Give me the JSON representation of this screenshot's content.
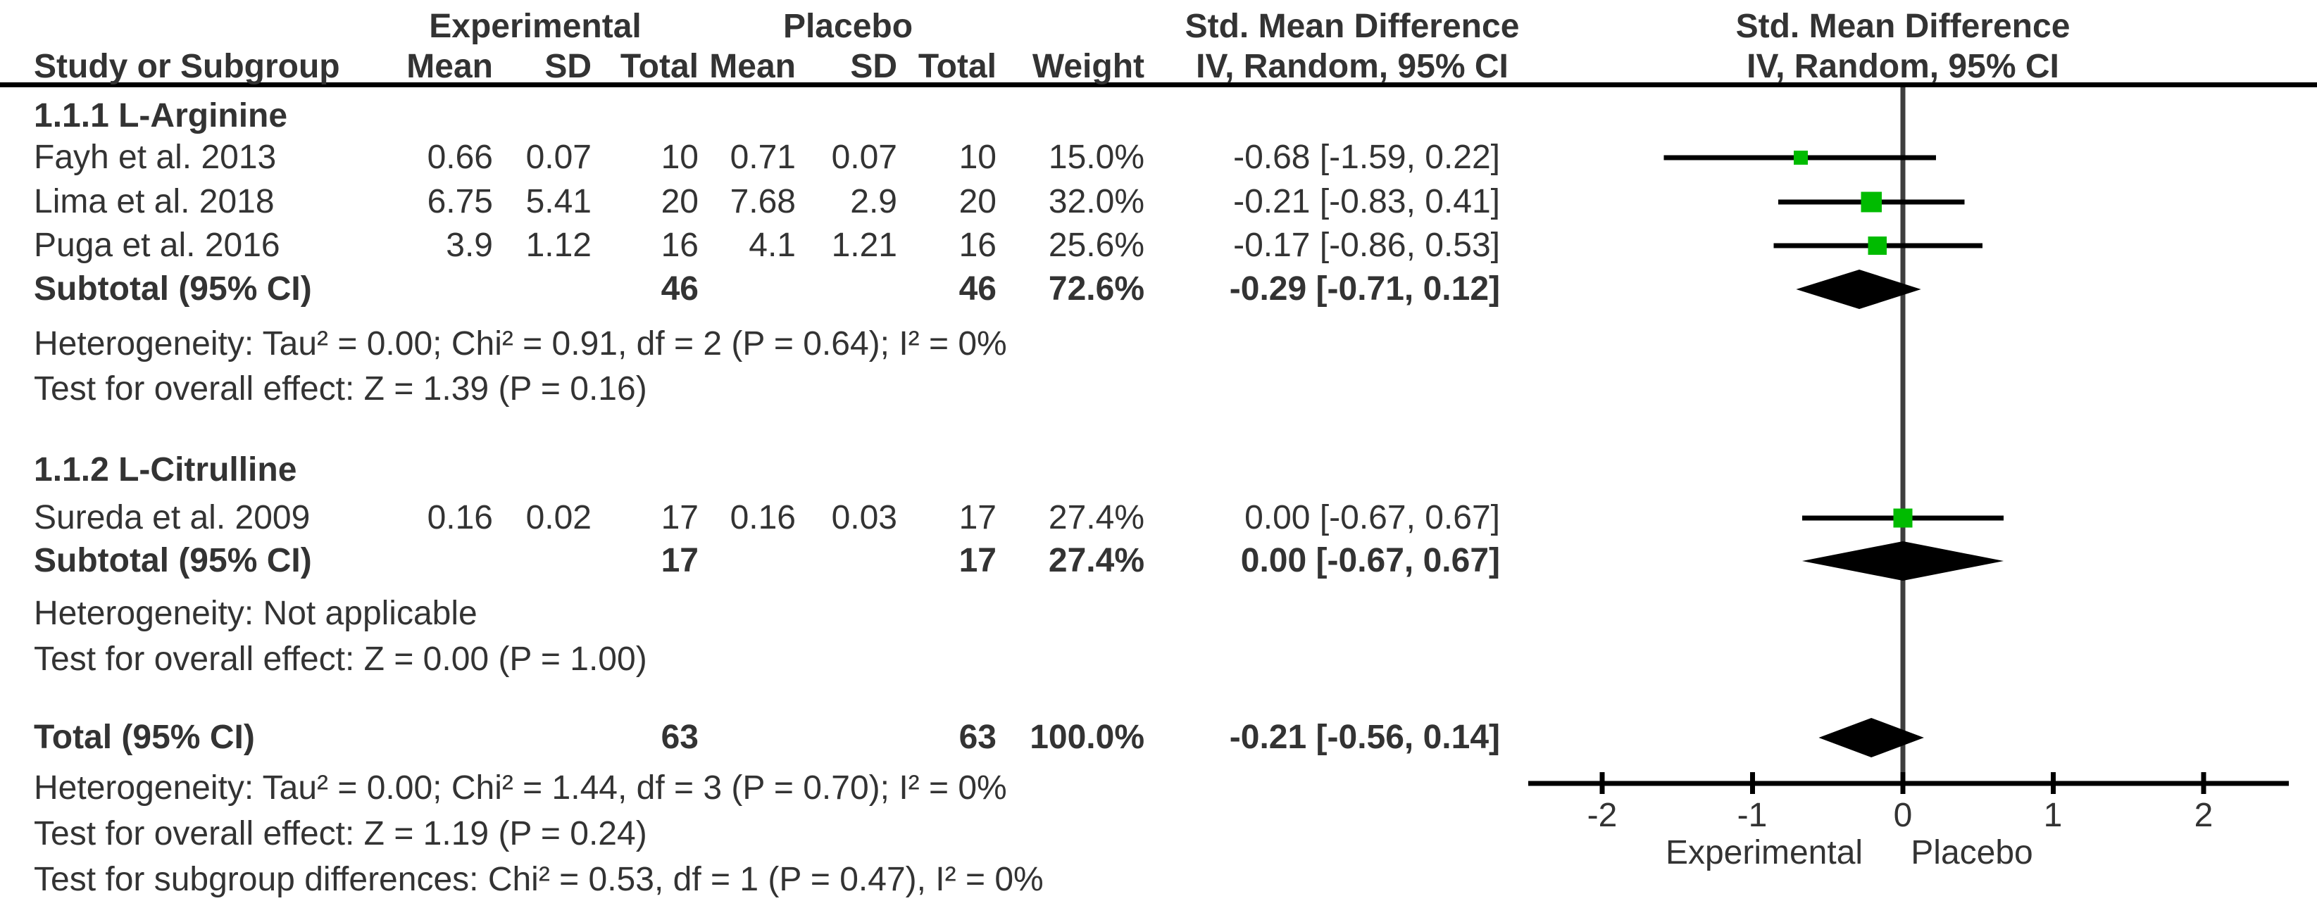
{
  "header": {
    "group1_label": "Experimental",
    "group2_label": "Placebo",
    "effect_label": "Std. Mean Difference",
    "method_label": "IV, Random, 95% CI",
    "study_col": "Study or Subgroup",
    "mean_col": "Mean",
    "sd_col": "SD",
    "total_col": "Total",
    "weight_col": "Weight"
  },
  "axis": {
    "tick_labels": [
      "-2",
      "-1",
      "0",
      "1",
      "2"
    ],
    "tick_values": [
      -2,
      -1,
      0,
      1,
      2
    ],
    "left_label": "Experimental",
    "right_label": "Placebo"
  },
  "colors": {
    "marker_green": "#00BB00",
    "diamond": "#000000",
    "text": "#333333",
    "line": "#000000",
    "zero_line": "#3E3E3E"
  },
  "chart_data": {
    "type": "forest",
    "title": "Std. Mean Difference",
    "method": "IV, Random, 95% CI",
    "xlabel_left": "Experimental",
    "xlabel_right": "Placebo",
    "xlim": [
      -2.5,
      2.6
    ],
    "ticks": [
      -2,
      -1,
      0,
      1,
      2
    ],
    "rows": [
      {
        "kind": "heading",
        "study": "1.1.1 L-Arginine"
      },
      {
        "kind": "study",
        "study": "Fayh et al. 2013",
        "mean_e": "0.66",
        "sd_e": "0.07",
        "total_e": "10",
        "mean_p": "0.71",
        "sd_p": "0.07",
        "total_p": "10",
        "weight": "15.0%",
        "weight_value": 15.0,
        "ci_text": "-0.68 [-1.59, 0.22]",
        "smd": -0.68,
        "ci_lo": -1.59,
        "ci_hi": 0.22
      },
      {
        "kind": "study",
        "study": "Lima et al. 2018",
        "mean_e": "6.75",
        "sd_e": "5.41",
        "total_e": "20",
        "mean_p": "7.68",
        "sd_p": "2.9",
        "total_p": "20",
        "weight": "32.0%",
        "weight_value": 32.0,
        "ci_text": "-0.21 [-0.83, 0.41]",
        "smd": -0.21,
        "ci_lo": -0.83,
        "ci_hi": 0.41
      },
      {
        "kind": "study",
        "study": "Puga et al. 2016",
        "mean_e": "3.9",
        "sd_e": "1.12",
        "total_e": "16",
        "mean_p": "4.1",
        "sd_p": "1.21",
        "total_p": "16",
        "weight": "25.6%",
        "weight_value": 25.6,
        "ci_text": "-0.17 [-0.86, 0.53]",
        "smd": -0.17,
        "ci_lo": -0.86,
        "ci_hi": 0.53
      },
      {
        "kind": "subtotal",
        "study": "Subtotal (95% CI)",
        "total_e": "46",
        "total_p": "46",
        "weight": "72.6%",
        "ci_text": "-0.29 [-0.71, 0.12]",
        "smd": -0.29,
        "ci_lo": -0.71,
        "ci_hi": 0.12
      },
      {
        "kind": "text",
        "study": "Heterogeneity: Tau² = 0.00; Chi² = 0.91, df = 2 (P = 0.64); I² = 0%"
      },
      {
        "kind": "text",
        "study": "Test for overall effect: Z = 1.39 (P = 0.16)"
      },
      {
        "kind": "heading",
        "study": "1.1.2 L-Citrulline"
      },
      {
        "kind": "study",
        "study": "Sureda et al. 2009",
        "mean_e": "0.16",
        "sd_e": "0.02",
        "total_e": "17",
        "mean_p": "0.16",
        "sd_p": "0.03",
        "total_p": "17",
        "weight": "27.4%",
        "weight_value": 27.4,
        "ci_text": "0.00 [-0.67, 0.67]",
        "smd": 0.0,
        "ci_lo": -0.67,
        "ci_hi": 0.67
      },
      {
        "kind": "subtotal",
        "study": "Subtotal (95% CI)",
        "total_e": "17",
        "total_p": "17",
        "weight": "27.4%",
        "ci_text": "0.00 [-0.67, 0.67]",
        "smd": 0.0,
        "ci_lo": -0.67,
        "ci_hi": 0.67
      },
      {
        "kind": "text",
        "study": "Heterogeneity: Not applicable"
      },
      {
        "kind": "text",
        "study": "Test for overall effect: Z = 0.00 (P = 1.00)"
      },
      {
        "kind": "total",
        "study": "Total (95% CI)",
        "total_e": "63",
        "total_p": "63",
        "weight": "100.0%",
        "ci_text": "-0.21 [-0.56, 0.14]",
        "smd": -0.21,
        "ci_lo": -0.56,
        "ci_hi": 0.14
      },
      {
        "kind": "text",
        "study": "Heterogeneity: Tau² = 0.00; Chi² = 1.44, df = 3 (P = 0.70); I² = 0%"
      },
      {
        "kind": "text",
        "study": "Test for overall effect: Z = 1.19 (P = 0.24)"
      },
      {
        "kind": "text",
        "study": "Test for subgroup differences: Chi² = 0.53, df = 1 (P = 0.47), I² = 0%"
      }
    ]
  }
}
